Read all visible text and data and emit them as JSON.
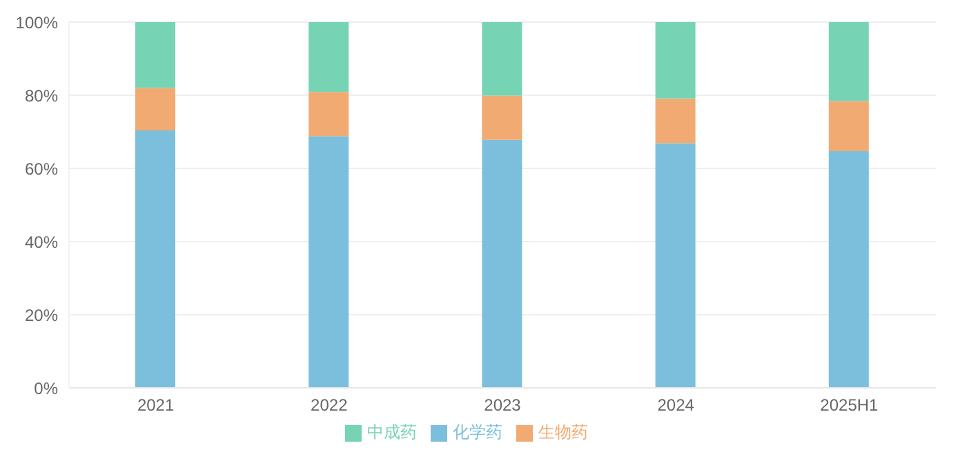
{
  "chart_data": {
    "type": "bar",
    "stacked": true,
    "categories": [
      "2021",
      "2022",
      "2023",
      "2024",
      "2025H1"
    ],
    "series": [
      {
        "name": "化学药",
        "color": "#7bbfdc",
        "values": [
          70.4,
          68.8,
          67.8,
          66.9,
          64.7
        ]
      },
      {
        "name": "生物药",
        "color": "#f0aa72",
        "values": [
          11.6,
          12.1,
          12.1,
          12.2,
          13.7
        ]
      },
      {
        "name": "中成药",
        "color": "#76d4b4",
        "values": [
          18.0,
          19.1,
          20.1,
          20.9,
          21.6
        ]
      }
    ],
    "ylim": [
      0,
      100
    ],
    "yticks": [
      {
        "value": 0,
        "label": "0%"
      },
      {
        "value": 20,
        "label": "20%"
      },
      {
        "value": 40,
        "label": "40%"
      },
      {
        "value": 60,
        "label": "60%"
      },
      {
        "value": 80,
        "label": "80%"
      },
      {
        "value": 100,
        "label": "100%"
      }
    ],
    "grid": "y",
    "legend": "bottom"
  }
}
